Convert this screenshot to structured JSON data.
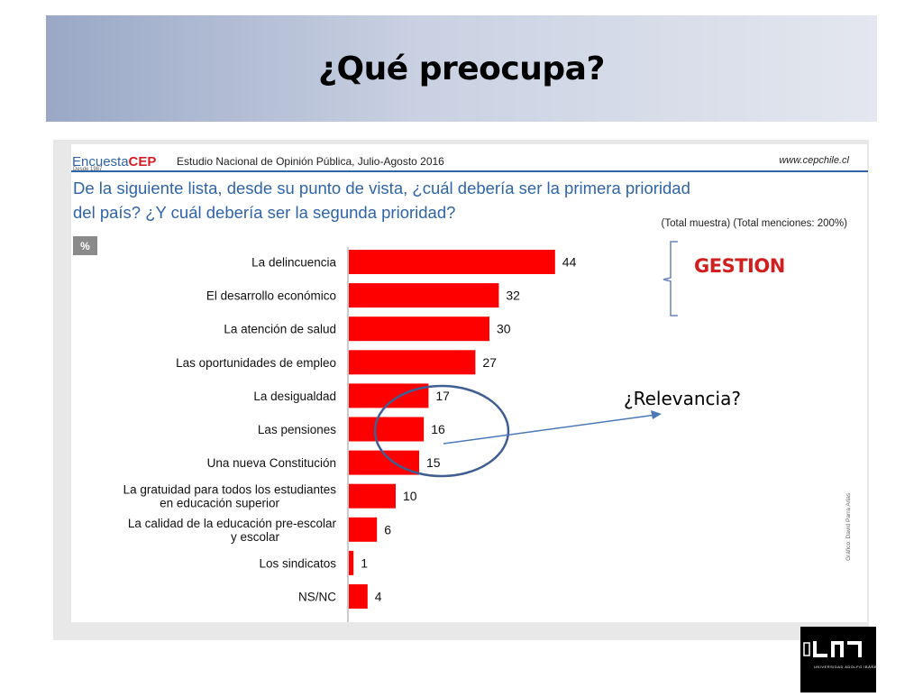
{
  "slide": {
    "title": "¿Qué preocupa?",
    "annotation_gestion": "GESTION",
    "annotation_relevancia": "¿Relevancia?"
  },
  "survey": {
    "brand_prefix": "Encuesta",
    "brand_suffix": "CEP",
    "since": "Desde 1987",
    "study": "Estudio Nacional de Opinión Pública, Julio-Agosto 2016",
    "site": "www.cepchile.cl",
    "question_line1": "De la siguiente lista, desde su punto de vista, ¿cuál debería ser la primera prioridad",
    "question_line2": "del país? ¿Y cuál debería ser la segunda prioridad?",
    "base_note": "(Total muestra) (Total menciones: 200%)",
    "unit_badge": "%",
    "credit": "Gráfico: David Parra Arias",
    "logo_label": "UNIVERSIDAD ADOLFO IBÁÑEZ"
  },
  "chart_data": {
    "type": "bar",
    "orientation": "horizontal",
    "categories": [
      [
        "La delincuencia"
      ],
      [
        "El desarrollo económico"
      ],
      [
        "La atención de salud"
      ],
      [
        "Las oportunidades de empleo"
      ],
      [
        "La desigualdad"
      ],
      [
        "Las pensiones"
      ],
      [
        "Una nueva Constitución"
      ],
      [
        "La gratuidad para todos los estudiantes",
        "en educación superior"
      ],
      [
        "La calidad de la educación pre-escolar",
        "y escolar"
      ],
      [
        "Los sindicatos"
      ],
      [
        "NS/NC"
      ]
    ],
    "values": [
      44,
      32,
      30,
      27,
      17,
      16,
      15,
      10,
      6,
      1,
      4
    ],
    "xlim": [
      0,
      50
    ],
    "bar_color": "#ff0000",
    "grid": false,
    "data_labels": true
  }
}
